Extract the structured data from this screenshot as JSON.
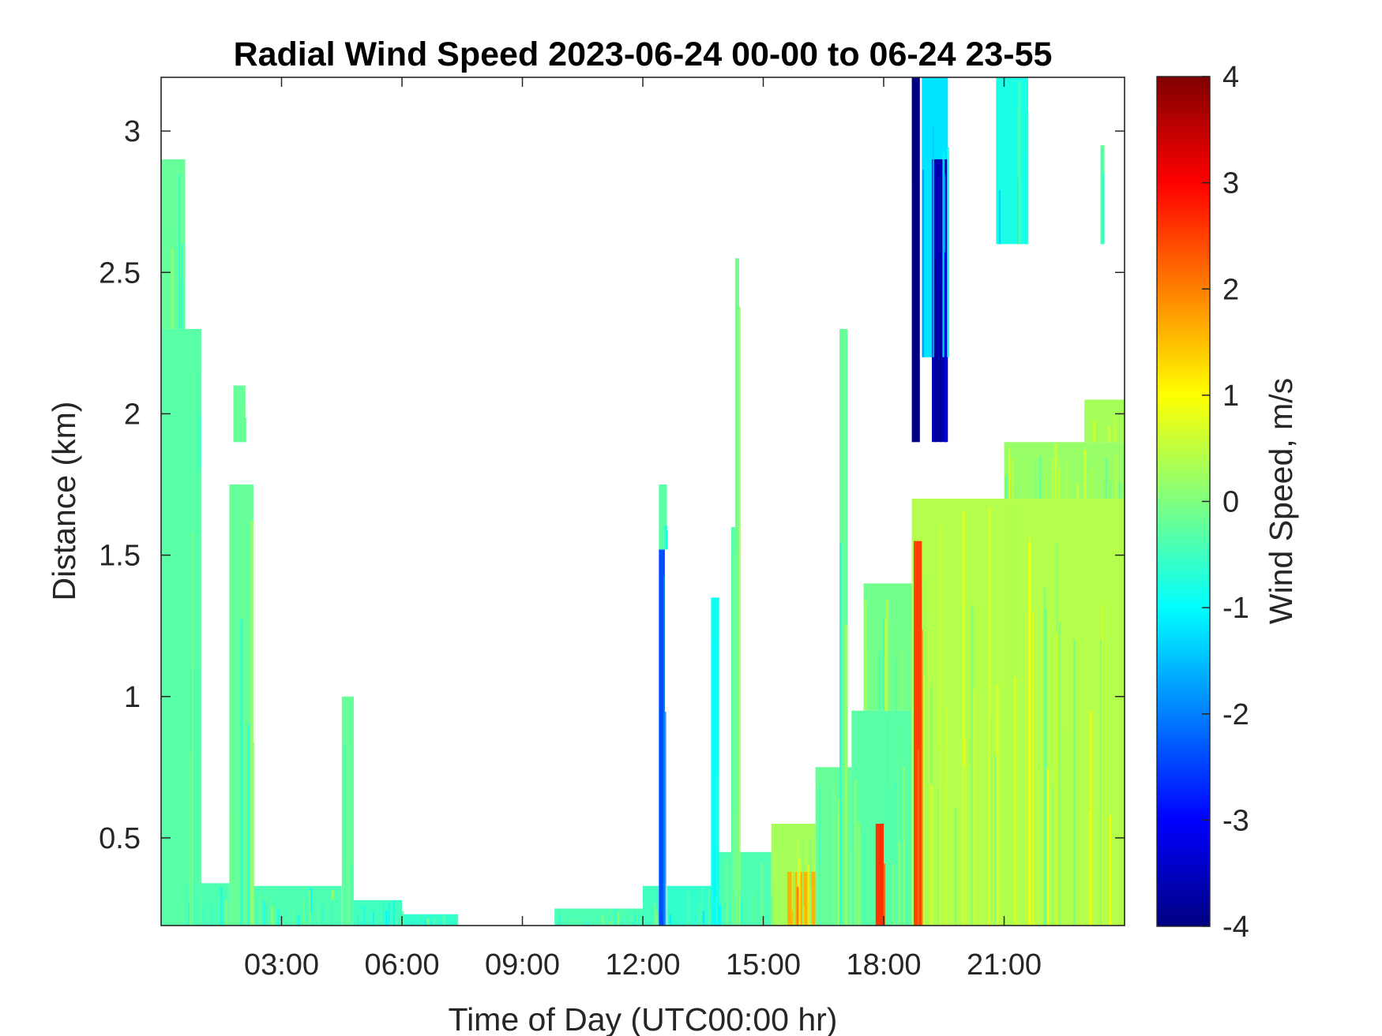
{
  "chart_data": {
    "type": "heatmap",
    "title": "Radial Wind Speed 2023-06-24 00-00 to 06-24 23-55",
    "xlabel": "Time of Day (UTC00:00 hr)",
    "ylabel": "Distance (km)",
    "x_unit": "hour",
    "xlim": [
      0,
      24
    ],
    "ylim": [
      0.19,
      3.19
    ],
    "x_ticks": [
      {
        "value": 3,
        "label": "03:00"
      },
      {
        "value": 6,
        "label": "06:00"
      },
      {
        "value": 9,
        "label": "09:00"
      },
      {
        "value": 12,
        "label": "12:00"
      },
      {
        "value": 15,
        "label": "15:00"
      },
      {
        "value": 18,
        "label": "18:00"
      },
      {
        "value": 21,
        "label": "21:00"
      }
    ],
    "y_ticks": [
      {
        "value": 0.5,
        "label": "0.5"
      },
      {
        "value": 1,
        "label": "1"
      },
      {
        "value": 1.5,
        "label": "1.5"
      },
      {
        "value": 2,
        "label": "2"
      },
      {
        "value": 2.5,
        "label": "2.5"
      },
      {
        "value": 3,
        "label": "3"
      }
    ],
    "colorbar": {
      "label": "Wind Speed, m/s",
      "colormap": "jet",
      "range": [
        -4,
        4
      ],
      "ticks": [
        {
          "value": 4,
          "label": "4"
        },
        {
          "value": 3,
          "label": "3"
        },
        {
          "value": 2,
          "label": "2"
        },
        {
          "value": 1,
          "label": "1"
        },
        {
          "value": 0,
          "label": "0"
        },
        {
          "value": -1,
          "label": "-1"
        },
        {
          "value": -2,
          "label": "-2"
        },
        {
          "value": -3,
          "label": "-3"
        },
        {
          "value": -4,
          "label": "-4"
        }
      ]
    },
    "grid": false,
    "regions": [
      {
        "x": [
          0.0,
          1.0
        ],
        "y": [
          0.19,
          2.3
        ],
        "v": -0.3
      },
      {
        "x": [
          0.0,
          0.6
        ],
        "y": [
          2.3,
          2.9
        ],
        "v": -0.2
      },
      {
        "x": [
          0.6,
          1.7
        ],
        "y": [
          0.19,
          0.34
        ],
        "v": -0.4
      },
      {
        "x": [
          1.7,
          2.3
        ],
        "y": [
          0.19,
          1.75
        ],
        "v": -0.2
      },
      {
        "x": [
          1.8,
          2.1
        ],
        "y": [
          1.9,
          2.1
        ],
        "v": -0.2
      },
      {
        "x": [
          2.3,
          4.5
        ],
        "y": [
          0.19,
          0.33
        ],
        "v": -0.4
      },
      {
        "x": [
          4.5,
          4.8
        ],
        "y": [
          0.19,
          1.0
        ],
        "v": -0.2
      },
      {
        "x": [
          4.8,
          6.0
        ],
        "y": [
          0.19,
          0.28
        ],
        "v": -0.5
      },
      {
        "x": [
          6.0,
          7.4
        ],
        "y": [
          0.19,
          0.23
        ],
        "v": -0.6
      },
      {
        "x": [
          9.8,
          12.0
        ],
        "y": [
          0.19,
          0.25
        ],
        "v": -0.4
      },
      {
        "x": [
          12.0,
          12.4
        ],
        "y": [
          0.19,
          0.33
        ],
        "v": -0.5
      },
      {
        "x": [
          12.4,
          12.55
        ],
        "y": [
          0.19,
          1.52
        ],
        "v": -2.4
      },
      {
        "x": [
          12.4,
          12.6
        ],
        "y": [
          1.52,
          1.75
        ],
        "v": -0.3
      },
      {
        "x": [
          12.6,
          13.7
        ],
        "y": [
          0.19,
          0.33
        ],
        "v": -0.6
      },
      {
        "x": [
          13.7,
          15.2
        ],
        "y": [
          0.19,
          0.45
        ],
        "v": -0.4
      },
      {
        "x": [
          15.2,
          16.3
        ],
        "y": [
          0.19,
          0.55
        ],
        "v": 0.3
      },
      {
        "x": [
          15.6,
          16.3
        ],
        "y": [
          0.19,
          0.38
        ],
        "v": 1.6
      },
      {
        "x": [
          16.3,
          17.2
        ],
        "y": [
          0.19,
          0.75
        ],
        "v": -0.2
      },
      {
        "x": [
          17.2,
          18.7
        ],
        "y": [
          0.19,
          0.95
        ],
        "v": -0.3
      },
      {
        "x": [
          17.5,
          18.7
        ],
        "y": [
          0.95,
          1.4
        ],
        "v": -0.1
      },
      {
        "x": [
          17.8,
          18.0
        ],
        "y": [
          0.19,
          0.55
        ],
        "v": 2.6
      },
      {
        "x": [
          18.7,
          18.9
        ],
        "y": [
          1.9,
          3.19
        ],
        "v": -4.0
      },
      {
        "x": [
          18.7,
          24.0
        ],
        "y": [
          0.19,
          1.7
        ],
        "v": 0.4
      },
      {
        "x": [
          18.75,
          18.95
        ],
        "y": [
          0.19,
          1.55
        ],
        "v": 2.5
      },
      {
        "x": [
          18.95,
          19.6
        ],
        "y": [
          2.2,
          3.19
        ],
        "v": -1.2
      },
      {
        "x": [
          19.2,
          19.6
        ],
        "y": [
          1.9,
          2.9
        ],
        "v": -3.6
      },
      {
        "x": [
          20.8,
          21.6
        ],
        "y": [
          2.6,
          3.19
        ],
        "v": -0.8
      },
      {
        "x": [
          21.0,
          24.0
        ],
        "y": [
          1.7,
          1.9
        ],
        "v": 0.2
      },
      {
        "x": [
          23.0,
          24.0
        ],
        "y": [
          1.9,
          2.05
        ],
        "v": 0.3
      },
      {
        "x": [
          23.4,
          23.5
        ],
        "y": [
          2.6,
          2.95
        ],
        "v": -0.2
      },
      {
        "x": [
          13.7,
          13.9
        ],
        "y": [
          0.19,
          1.35
        ],
        "v": -0.9
      },
      {
        "x": [
          14.2,
          14.3
        ],
        "y": [
          0.19,
          1.6
        ],
        "v": -0.3
      },
      {
        "x": [
          16.9,
          17.1
        ],
        "y": [
          0.19,
          2.3
        ],
        "v": -0.2
      },
      {
        "x": [
          14.3,
          14.4
        ],
        "y": [
          0.19,
          2.55
        ],
        "v": -0.1
      }
    ]
  }
}
